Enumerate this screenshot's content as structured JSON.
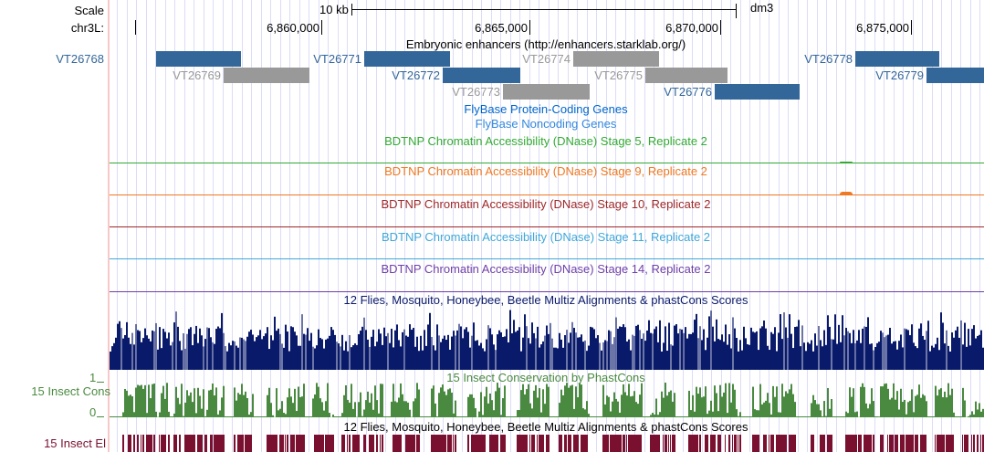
{
  "ruler": {
    "scale_label": "Scale",
    "scale_value": "10 kb",
    "assembly": "dm3",
    "chrom_label": "chr3L:",
    "ticks": [
      "6,860,000",
      "6,865,000",
      "6,870,000",
      "6,875,000"
    ]
  },
  "enhancers": {
    "title": "Embryonic enhancers (http://enhancers.starklab.org/)",
    "items": [
      {
        "name": "VT26768",
        "color": "#336699"
      },
      {
        "name": "VT26769",
        "color": "#999999"
      },
      {
        "name": "VT26771",
        "color": "#336699"
      },
      {
        "name": "VT26772",
        "color": "#336699"
      },
      {
        "name": "VT26773",
        "color": "#999999"
      },
      {
        "name": "VT26774",
        "color": "#999999"
      },
      {
        "name": "VT26775",
        "color": "#999999"
      },
      {
        "name": "VT26776",
        "color": "#336699"
      },
      {
        "name": "VT26778",
        "color": "#336699"
      },
      {
        "name": "VT26779",
        "color": "#336699"
      }
    ]
  },
  "flybase": {
    "coding": "FlyBase Protein-Coding Genes",
    "noncoding": "FlyBase Noncoding Genes",
    "color": "#0066cc"
  },
  "dnase": [
    {
      "label": "BDTNP Chromatin Accessibility (DNase) Stage 5, Replicate 2",
      "color": "#33aa33"
    },
    {
      "label": "BDTNP Chromatin Accessibility (DNase) Stage 9, Replicate 2",
      "color": "#f07820"
    },
    {
      "label": "BDTNP Chromatin Accessibility (DNase) Stage 10, Replicate 2",
      "color": "#a02828"
    },
    {
      "label": "BDTNP Chromatin Accessibility (DNase) Stage 11, Replicate 2",
      "color": "#40a8d8"
    },
    {
      "label": "BDTNP Chromatin Accessibility (DNase) Stage 14, Replicate 2",
      "color": "#7040a8"
    }
  ],
  "multiz": {
    "title": "12 Flies, Mosquito, Honeybee, Beetle Multiz Alignments & phastCons Scores",
    "color": "#0a1a6a"
  },
  "cons": {
    "title": "15 Insect Conservation by PhastCons",
    "side_label": "15 Insect Cons",
    "ymax": "1",
    "ymin": "0",
    "color": "#4a8a40"
  },
  "elements": {
    "title": "12 Flies, Mosquito, Honeybee, Beetle Multiz Alignments & phastCons Scores",
    "side_label": "15 Insect El",
    "color": "#7a1030"
  }
}
